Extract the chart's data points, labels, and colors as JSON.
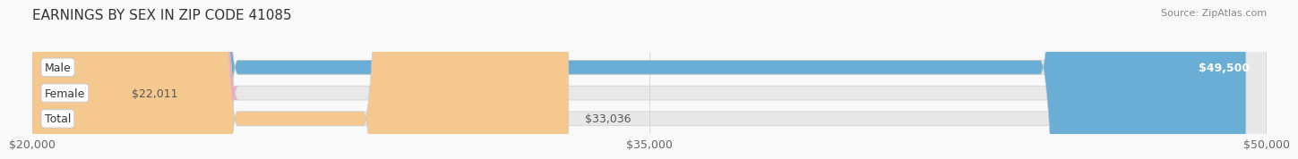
{
  "title": "EARNINGS BY SEX IN ZIP CODE 41085",
  "source": "Source: ZipAtlas.com",
  "categories": [
    "Male",
    "Female",
    "Total"
  ],
  "values": [
    49500,
    22011,
    33036
  ],
  "bar_colors": [
    "#6aaed6",
    "#f4a7b9",
    "#f5c890"
  ],
  "bar_bg_color": "#e8e8e8",
  "x_min": 20000,
  "x_max": 50000,
  "x_ticks": [
    20000,
    35000,
    50000
  ],
  "x_tick_labels": [
    "$20,000",
    "$35,000",
    "$50,000"
  ],
  "value_labels": [
    "$49,500",
    "$22,011",
    "$33,036"
  ],
  "bg_color": "#f9f9f9",
  "bar_height": 0.55,
  "title_fontsize": 11,
  "label_fontsize": 9,
  "tick_fontsize": 9,
  "category_fontsize": 9
}
